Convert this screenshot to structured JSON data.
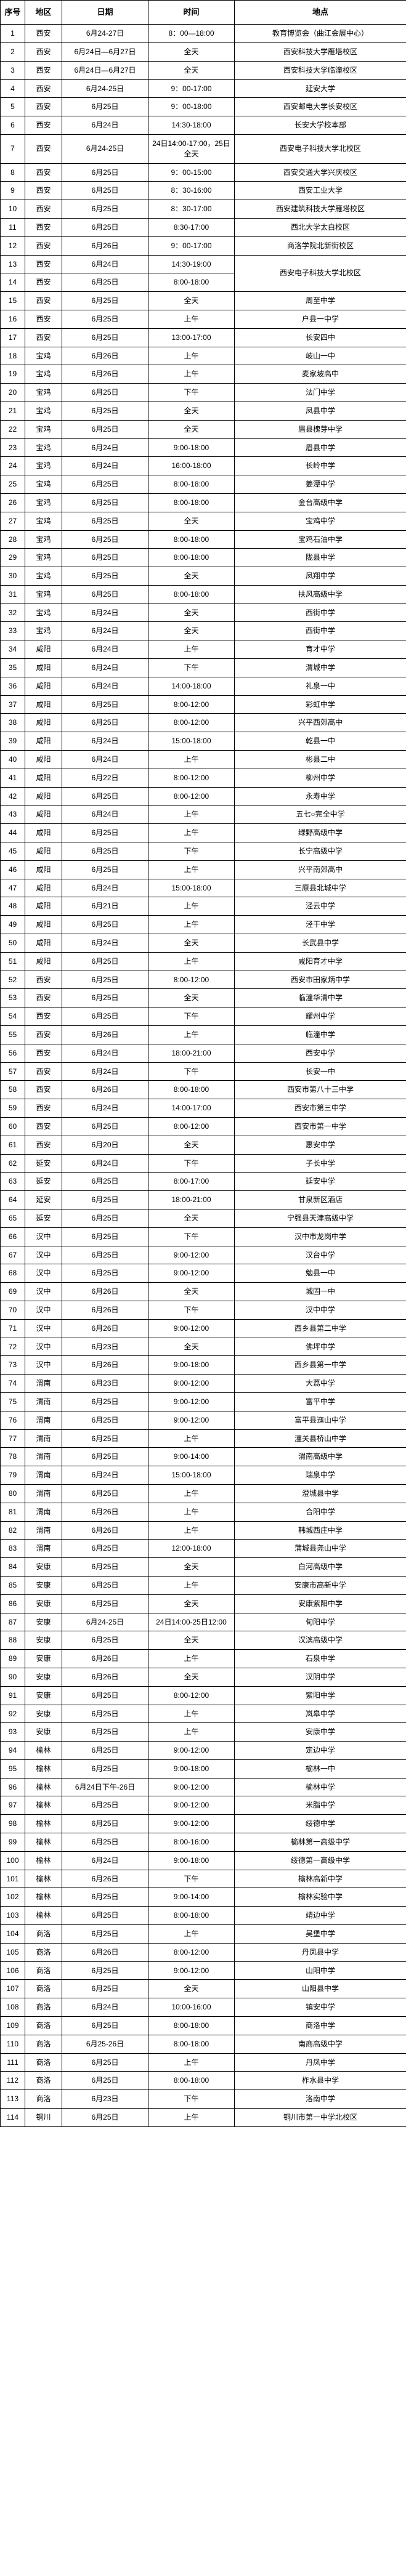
{
  "headers": [
    "序号",
    "地区",
    "日期",
    "时间",
    "地点"
  ],
  "rows": [
    {
      "seq": "1",
      "region": "西安",
      "date": "6月24-27日",
      "time": "8：00—18:00",
      "place": "教育博览会（曲江会展中心）"
    },
    {
      "seq": "2",
      "region": "西安",
      "date": "6月24日—6月27日",
      "time": "全天",
      "place": "西安科技大学雁塔校区"
    },
    {
      "seq": "3",
      "region": "西安",
      "date": "6月24日—6月27日",
      "time": "全天",
      "place": "西安科技大学临潼校区"
    },
    {
      "seq": "4",
      "region": "西安",
      "date": "6月24-25日",
      "time": "9：00-17:00",
      "place": "延安大学"
    },
    {
      "seq": "5",
      "region": "西安",
      "date": "6月25日",
      "time": "9：00-18:00",
      "place": "西安邮电大学长安校区"
    },
    {
      "seq": "6",
      "region": "西安",
      "date": "6月24日",
      "time": "14:30-18:00",
      "place": "长安大学校本部"
    },
    {
      "seq": "7",
      "region": "西安",
      "date": "6月24-25日",
      "time": "24日14:00-17:00，25日全天",
      "place": "西安电子科技大学北校区"
    },
    {
      "seq": "8",
      "region": "西安",
      "date": "6月25日",
      "time": "9：00-15:00",
      "place": "西安交通大学兴庆校区"
    },
    {
      "seq": "9",
      "region": "西安",
      "date": "6月25日",
      "time": "8：30-16:00",
      "place": "西安工业大学"
    },
    {
      "seq": "10",
      "region": "西安",
      "date": "6月25日",
      "time": "8：30-17:00",
      "place": "西安建筑科技大学雁塔校区"
    },
    {
      "seq": "11",
      "region": "西安",
      "date": "6月25日",
      "time": "8:30-17:00",
      "place": "西北大学太白校区"
    },
    {
      "seq": "12",
      "region": "西安",
      "date": "6月26日",
      "time": "9：00-17:00",
      "place": "商洛学院北新街校区"
    },
    {
      "seq": "13",
      "region": "西安",
      "date": "6月24日",
      "time": "14:30-19:00",
      "place": "西安电子科技大学北校区",
      "rowspan_place": 2
    },
    {
      "seq": "14",
      "region": "西安",
      "date": "6月25日",
      "time": "8:00-18:00",
      "place": null
    },
    {
      "seq": "15",
      "region": "西安",
      "date": "6月25日",
      "time": "全天",
      "place": "周至中学"
    },
    {
      "seq": "16",
      "region": "西安",
      "date": "6月25日",
      "time": "上午",
      "place": "户县一中学"
    },
    {
      "seq": "17",
      "region": "西安",
      "date": "6月25日",
      "time": "13:00-17:00",
      "place": "长安四中"
    },
    {
      "seq": "18",
      "region": "宝鸡",
      "date": "6月26日",
      "time": "上午",
      "place": "岐山一中"
    },
    {
      "seq": "19",
      "region": "宝鸡",
      "date": "6月26日",
      "time": "上午",
      "place": "麦家坡高中"
    },
    {
      "seq": "20",
      "region": "宝鸡",
      "date": "6月25日",
      "time": "下午",
      "place": "法门中学"
    },
    {
      "seq": "21",
      "region": "宝鸡",
      "date": "6月25日",
      "time": "全天",
      "place": "凤县中学"
    },
    {
      "seq": "22",
      "region": "宝鸡",
      "date": "6月25日",
      "time": "全天",
      "place": "眉县槐芽中学"
    },
    {
      "seq": "23",
      "region": "宝鸡",
      "date": "6月24日",
      "time": "9:00-18:00",
      "place": "眉县中学"
    },
    {
      "seq": "24",
      "region": "宝鸡",
      "date": "6月24日",
      "time": "16:00-18:00",
      "place": "长岭中学"
    },
    {
      "seq": "25",
      "region": "宝鸡",
      "date": "6月25日",
      "time": "8:00-18:00",
      "place": "姜潭中学"
    },
    {
      "seq": "26",
      "region": "宝鸡",
      "date": "6月25日",
      "time": "8:00-18:00",
      "place": "金台高级中学"
    },
    {
      "seq": "27",
      "region": "宝鸡",
      "date": "6月25日",
      "time": "全天",
      "place": "宝鸡中学"
    },
    {
      "seq": "28",
      "region": "宝鸡",
      "date": "6月25日",
      "time": "8:00-18:00",
      "place": "宝鸡石油中学"
    },
    {
      "seq": "29",
      "region": "宝鸡",
      "date": "6月25日",
      "time": "8:00-18:00",
      "place": "陇县中学"
    },
    {
      "seq": "30",
      "region": "宝鸡",
      "date": "6月25日",
      "time": "全天",
      "place": "凤翔中学"
    },
    {
      "seq": "31",
      "region": "宝鸡",
      "date": "6月25日",
      "time": "8:00-18:00",
      "place": "扶风高级中学"
    },
    {
      "seq": "32",
      "region": "宝鸡",
      "date": "6月24日",
      "time": "全天",
      "place": "西街中学"
    },
    {
      "seq": "33",
      "region": "宝鸡",
      "date": "6月24日",
      "time": "全天",
      "place": "西街中学"
    },
    {
      "seq": "34",
      "region": "咸阳",
      "date": "6月24日",
      "time": "上午",
      "place": "育才中学"
    },
    {
      "seq": "35",
      "region": "咸阳",
      "date": "6月24日",
      "time": "下午",
      "place": "渭城中学"
    },
    {
      "seq": "36",
      "region": "咸阳",
      "date": "6月24日",
      "time": "14:00-18:00",
      "place": "礼泉一中"
    },
    {
      "seq": "37",
      "region": "咸阳",
      "date": "6月25日",
      "time": "8:00-12:00",
      "place": "彩虹中学"
    },
    {
      "seq": "38",
      "region": "咸阳",
      "date": "6月25日",
      "time": "8:00-12:00",
      "place": "兴平西郊高中"
    },
    {
      "seq": "39",
      "region": "咸阳",
      "date": "6月24日",
      "time": "15:00-18:00",
      "place": "乾县一中"
    },
    {
      "seq": "40",
      "region": "咸阳",
      "date": "6月24日",
      "time": "上午",
      "place": "彬县二中"
    },
    {
      "seq": "41",
      "region": "咸阳",
      "date": "6月22日",
      "time": "8:00-12:00",
      "place": "柳州中学"
    },
    {
      "seq": "42",
      "region": "咸阳",
      "date": "6月25日",
      "time": "8:00-12:00",
      "place": "永寿中学"
    },
    {
      "seq": "43",
      "region": "咸阳",
      "date": "6月24日",
      "time": "上午",
      "place": "五七○完全中学"
    },
    {
      "seq": "44",
      "region": "咸阳",
      "date": "6月25日",
      "time": "上午",
      "place": "绿野高级中学"
    },
    {
      "seq": "45",
      "region": "咸阳",
      "date": "6月25日",
      "time": "下午",
      "place": "长宁高级中学"
    },
    {
      "seq": "46",
      "region": "咸阳",
      "date": "6月25日",
      "time": "上午",
      "place": "兴平南郊高中"
    },
    {
      "seq": "47",
      "region": "咸阳",
      "date": "6月24日",
      "time": "15:00-18:00",
      "place": "三原县北城中学"
    },
    {
      "seq": "48",
      "region": "咸阳",
      "date": "6月21日",
      "time": "上午",
      "place": "泾云中学"
    },
    {
      "seq": "49",
      "region": "咸阳",
      "date": "6月25日",
      "time": "上午",
      "place": "泾干中学"
    },
    {
      "seq": "50",
      "region": "咸阳",
      "date": "6月24日",
      "time": "全天",
      "place": "长武县中学"
    },
    {
      "seq": "51",
      "region": "咸阳",
      "date": "6月25日",
      "time": "上午",
      "place": "咸阳育才中学"
    },
    {
      "seq": "52",
      "region": "西安",
      "date": "6月25日",
      "time": "8:00-12:00",
      "place": "西安市田家炳中学"
    },
    {
      "seq": "53",
      "region": "西安",
      "date": "6月25日",
      "time": "全天",
      "place": "临潼华清中学"
    },
    {
      "seq": "54",
      "region": "西安",
      "date": "6月25日",
      "time": "下午",
      "place": "耀州中学"
    },
    {
      "seq": "55",
      "region": "西安",
      "date": "6月26日",
      "time": "上午",
      "place": "临潼中学"
    },
    {
      "seq": "56",
      "region": "西安",
      "date": "6月24日",
      "time": "18:00-21:00",
      "place": "西安中学"
    },
    {
      "seq": "57",
      "region": "西安",
      "date": "6月24日",
      "time": "下午",
      "place": "长安一中"
    },
    {
      "seq": "58",
      "region": "西安",
      "date": "6月26日",
      "time": "8:00-18:00",
      "place": "西安市第八十三中学"
    },
    {
      "seq": "59",
      "region": "西安",
      "date": "6月24日",
      "time": "14:00-17:00",
      "place": "西安市第三中学"
    },
    {
      "seq": "60",
      "region": "西安",
      "date": "6月25日",
      "time": "8:00-12:00",
      "place": "西安市第一中学"
    },
    {
      "seq": "61",
      "region": "西安",
      "date": "6月20日",
      "time": "全天",
      "place": "惠安中学"
    },
    {
      "seq": "62",
      "region": "延安",
      "date": "6月24日",
      "time": "下午",
      "place": "子长中学"
    },
    {
      "seq": "63",
      "region": "延安",
      "date": "6月25日",
      "time": "8:00-17:00",
      "place": "延安中学"
    },
    {
      "seq": "64",
      "region": "延安",
      "date": "6月25日",
      "time": "18:00-21:00",
      "place": "甘泉新区酒店"
    },
    {
      "seq": "65",
      "region": "延安",
      "date": "6月25日",
      "time": "全天",
      "place": "宁强县天津高级中学"
    },
    {
      "seq": "66",
      "region": "汉中",
      "date": "6月25日",
      "time": "下午",
      "place": "汉中市龙岗中学"
    },
    {
      "seq": "67",
      "region": "汉中",
      "date": "6月25日",
      "time": "9:00-12:00",
      "place": "汉台中学"
    },
    {
      "seq": "68",
      "region": "汉中",
      "date": "6月25日",
      "time": "9:00-12:00",
      "place": "勉县一中"
    },
    {
      "seq": "69",
      "region": "汉中",
      "date": "6月26日",
      "time": "全天",
      "place": "城固一中"
    },
    {
      "seq": "70",
      "region": "汉中",
      "date": "6月26日",
      "time": "下午",
      "place": "汉中中学"
    },
    {
      "seq": "71",
      "region": "汉中",
      "date": "6月26日",
      "time": "9:00-12:00",
      "place": "西乡县第二中学"
    },
    {
      "seq": "72",
      "region": "汉中",
      "date": "6月23日",
      "time": "全天",
      "place": "佛坪中学"
    },
    {
      "seq": "73",
      "region": "汉中",
      "date": "6月26日",
      "time": "9:00-18:00",
      "place": "西乡县第一中学"
    },
    {
      "seq": "74",
      "region": "渭南",
      "date": "6月23日",
      "time": "9:00-12:00",
      "place": "大荔中学"
    },
    {
      "seq": "75",
      "region": "渭南",
      "date": "6月25日",
      "time": "9:00-12:00",
      "place": "富平中学"
    },
    {
      "seq": "76",
      "region": "渭南",
      "date": "6月25日",
      "time": "9:00-12:00",
      "place": "富平县迤山中学"
    },
    {
      "seq": "77",
      "region": "渭南",
      "date": "6月25日",
      "time": "上午",
      "place": "潼关县桥山中学"
    },
    {
      "seq": "78",
      "region": "渭南",
      "date": "6月25日",
      "time": "9:00-14:00",
      "place": "渭南高级中学"
    },
    {
      "seq": "79",
      "region": "渭南",
      "date": "6月24日",
      "time": "15:00-18:00",
      "place": "瑞泉中学"
    },
    {
      "seq": "80",
      "region": "渭南",
      "date": "6月25日",
      "time": "上午",
      "place": "澄城县中学"
    },
    {
      "seq": "81",
      "region": "渭南",
      "date": "6月26日",
      "time": "上午",
      "place": "合阳中学"
    },
    {
      "seq": "82",
      "region": "渭南",
      "date": "6月26日",
      "time": "上午",
      "place": "韩城西庄中学"
    },
    {
      "seq": "83",
      "region": "渭南",
      "date": "6月25日",
      "time": "12:00-18:00",
      "place": "蒲城县尧山中学"
    },
    {
      "seq": "84",
      "region": "安康",
      "date": "6月25日",
      "time": "全天",
      "place": "白河高级中学"
    },
    {
      "seq": "85",
      "region": "安康",
      "date": "6月25日",
      "time": "上午",
      "place": "安康市高新中学"
    },
    {
      "seq": "86",
      "region": "安康",
      "date": "6月25日",
      "time": "全天",
      "place": "安康紫阳中学"
    },
    {
      "seq": "87",
      "region": "安康",
      "date": "6月24-25日",
      "time": "24日14:00-25日12:00",
      "place": "旬阳中学"
    },
    {
      "seq": "88",
      "region": "安康",
      "date": "6月25日",
      "time": "全天",
      "place": "汉滨高级中学"
    },
    {
      "seq": "89",
      "region": "安康",
      "date": "6月26日",
      "time": "上午",
      "place": "石泉中学"
    },
    {
      "seq": "90",
      "region": "安康",
      "date": "6月26日",
      "time": "全天",
      "place": "汉阴中学"
    },
    {
      "seq": "91",
      "region": "安康",
      "date": "6月25日",
      "time": "8:00-12:00",
      "place": "紫阳中学"
    },
    {
      "seq": "92",
      "region": "安康",
      "date": "6月25日",
      "time": "上午",
      "place": "岚皋中学"
    },
    {
      "seq": "93",
      "region": "安康",
      "date": "6月25日",
      "time": "上午",
      "place": "安康中学"
    },
    {
      "seq": "94",
      "region": "榆林",
      "date": "6月25日",
      "time": "9:00-12:00",
      "place": "定边中学"
    },
    {
      "seq": "95",
      "region": "榆林",
      "date": "6月25日",
      "time": "9:00-18:00",
      "place": "榆林一中"
    },
    {
      "seq": "96",
      "region": "榆林",
      "date": "6月24日下午-26日",
      "time": "9:00-12:00",
      "place": "榆林中学"
    },
    {
      "seq": "97",
      "region": "榆林",
      "date": "6月25日",
      "time": "9:00-12:00",
      "place": "米脂中学"
    },
    {
      "seq": "98",
      "region": "榆林",
      "date": "6月25日",
      "time": "9:00-12:00",
      "place": "绥德中学"
    },
    {
      "seq": "99",
      "region": "榆林",
      "date": "6月25日",
      "time": "8:00-16:00",
      "place": "榆林第一高级中学"
    },
    {
      "seq": "100",
      "region": "榆林",
      "date": "6月24日",
      "time": "9:00-18:00",
      "place": "绥德第一高级中学"
    },
    {
      "seq": "101",
      "region": "榆林",
      "date": "6月26日",
      "time": "下午",
      "place": "榆林高新中学"
    },
    {
      "seq": "102",
      "region": "榆林",
      "date": "6月25日",
      "time": "9:00-14:00",
      "place": "榆林实验中学"
    },
    {
      "seq": "103",
      "region": "榆林",
      "date": "6月25日",
      "time": "8:00-18:00",
      "place": "靖边中学"
    },
    {
      "seq": "104",
      "region": "商洛",
      "date": "6月25日",
      "time": "上午",
      "place": "吴堡中学"
    },
    {
      "seq": "105",
      "region": "商洛",
      "date": "6月26日",
      "time": "8:00-12:00",
      "place": "丹凤县中学"
    },
    {
      "seq": "106",
      "region": "商洛",
      "date": "6月25日",
      "time": "9:00-12:00",
      "place": "山阳中学"
    },
    {
      "seq": "107",
      "region": "商洛",
      "date": "6月25日",
      "time": "全天",
      "place": "山阳县中学"
    },
    {
      "seq": "108",
      "region": "商洛",
      "date": "6月24日",
      "time": "10:00-16:00",
      "place": "镇安中学"
    },
    {
      "seq": "109",
      "region": "商洛",
      "date": "6月25日",
      "time": "8:00-18:00",
      "place": "商洛中学"
    },
    {
      "seq": "110",
      "region": "商洛",
      "date": "6月25-26日",
      "time": "8:00-18:00",
      "place": "南商高级中学"
    },
    {
      "seq": "111",
      "region": "商洛",
      "date": "6月25日",
      "time": "上午",
      "place": "丹凤中学"
    },
    {
      "seq": "112",
      "region": "商洛",
      "date": "6月25日",
      "time": "8:00-18:00",
      "place": "柞水县中学"
    },
    {
      "seq": "113",
      "region": "商洛",
      "date": "6月23日",
      "time": "下午",
      "place": "洛南中学"
    },
    {
      "seq": "114",
      "region": "铜川",
      "date": "6月25日",
      "time": "上午",
      "place": "铜川市第一中学北校区"
    }
  ]
}
